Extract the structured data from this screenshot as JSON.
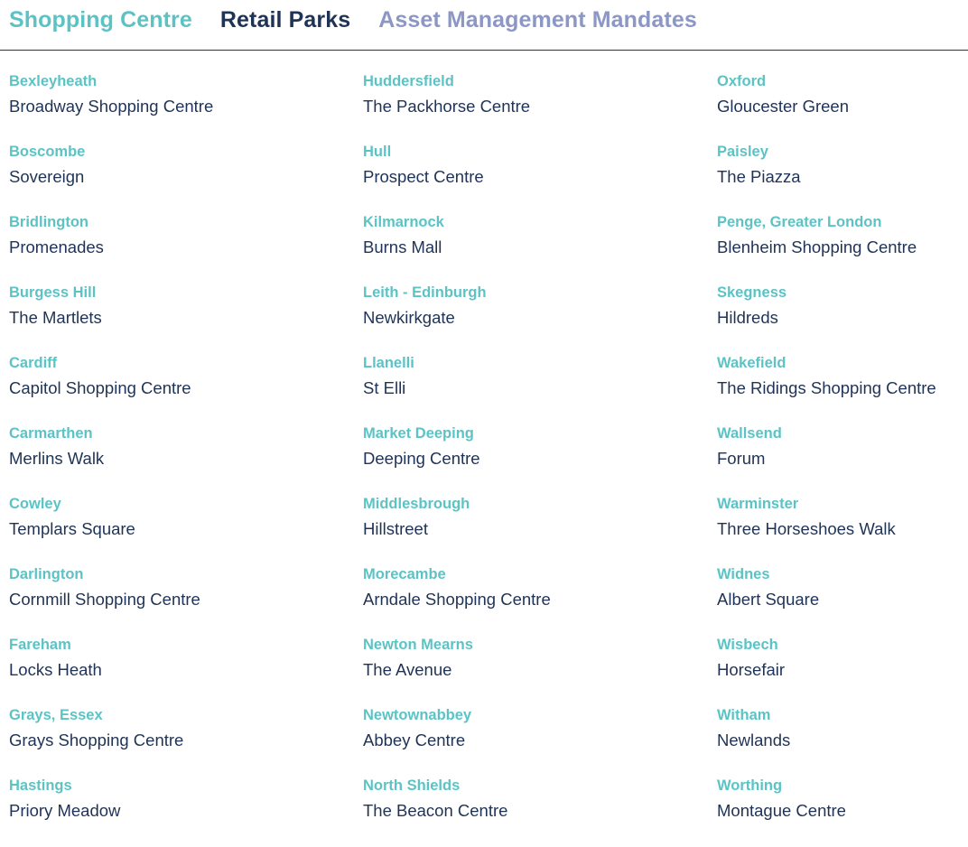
{
  "tabs": {
    "shopping_centre": "Shopping Centre",
    "retail_parks": "Retail Parks",
    "asset_management": "Asset Management Mandates"
  },
  "colors": {
    "accent_teal": "#5cc3c5",
    "navy": "#1f3356",
    "lavender": "#8c97c5"
  },
  "locations": [
    {
      "town": "Bexleyheath",
      "centre": "Broadway Shopping Centre"
    },
    {
      "town": "Huddersfield",
      "centre": "The Packhorse Centre"
    },
    {
      "town": "Oxford",
      "centre": "Gloucester Green"
    },
    {
      "town": "Boscombe",
      "centre": "Sovereign"
    },
    {
      "town": "Hull",
      "centre": "Prospect Centre"
    },
    {
      "town": "Paisley",
      "centre": "The Piazza"
    },
    {
      "town": "Bridlington",
      "centre": "Promenades"
    },
    {
      "town": "Kilmarnock",
      "centre": "Burns Mall"
    },
    {
      "town": "Penge, Greater London",
      "centre": "Blenheim Shopping Centre"
    },
    {
      "town": "Burgess Hill",
      "centre": "The Martlets"
    },
    {
      "town": "Leith - Edinburgh",
      "centre": "Newkirkgate"
    },
    {
      "town": "Skegness",
      "centre": "Hildreds"
    },
    {
      "town": "Cardiff",
      "centre": "Capitol Shopping Centre"
    },
    {
      "town": "Llanelli",
      "centre": "St Elli"
    },
    {
      "town": "Wakefield",
      "centre": "The Ridings Shopping Centre"
    },
    {
      "town": "Carmarthen",
      "centre": "Merlins Walk"
    },
    {
      "town": "Market Deeping",
      "centre": "Deeping Centre"
    },
    {
      "town": "Wallsend",
      "centre": "Forum"
    },
    {
      "town": "Cowley",
      "centre": "Templars Square"
    },
    {
      "town": "Middlesbrough",
      "centre": "Hillstreet"
    },
    {
      "town": "Warminster",
      "centre": "Three Horseshoes Walk"
    },
    {
      "town": "Darlington",
      "centre": "Cornmill Shopping Centre"
    },
    {
      "town": "Morecambe",
      "centre": "Arndale Shopping Centre"
    },
    {
      "town": "Widnes",
      "centre": "Albert Square"
    },
    {
      "town": "Fareham",
      "centre": "Locks Heath"
    },
    {
      "town": "Newton Mearns",
      "centre": "The Avenue"
    },
    {
      "town": "Wisbech",
      "centre": "Horsefair"
    },
    {
      "town": "Grays, Essex",
      "centre": "Grays Shopping Centre"
    },
    {
      "town": "Newtownabbey",
      "centre": "Abbey Centre"
    },
    {
      "town": "Witham",
      "centre": "Newlands"
    },
    {
      "town": "Hastings",
      "centre": "Priory Meadow"
    },
    {
      "town": "North Shields",
      "centre": "The Beacon Centre"
    },
    {
      "town": "Worthing",
      "centre": "Montague Centre"
    }
  ]
}
